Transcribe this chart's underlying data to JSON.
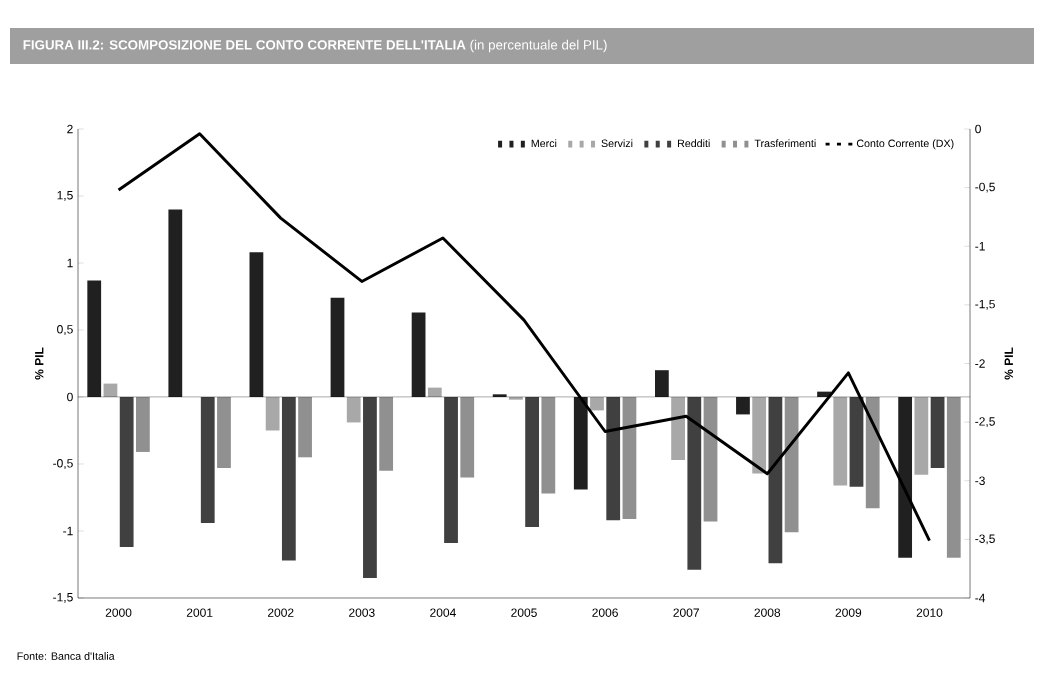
{
  "chart_data": {
    "type": "bar",
    "title": "FIGURA III.2: SCOMPOSIZIONE DEL CONTO CORRENTE DELL'ITALIA",
    "subtitle": "(in percentuale del PIL)",
    "ylabel": "% PIL",
    "y2label": "% PIL",
    "categories": [
      "2000",
      "2001",
      "2002",
      "2003",
      "2004",
      "2005",
      "2006",
      "2007",
      "2008",
      "2009",
      "2010"
    ],
    "series": [
      {
        "name": "Merci",
        "color": "#202020",
        "values": [
          0.87,
          1.4,
          1.08,
          0.74,
          0.63,
          0.02,
          -0.69,
          0.2,
          -0.13,
          0.04,
          -1.2
        ]
      },
      {
        "name": "Servizi",
        "color": "#a8a8a8",
        "values": [
          0.1,
          0.0,
          -0.25,
          -0.19,
          0.07,
          -0.02,
          -0.1,
          -0.47,
          -0.57,
          -0.66,
          -0.58
        ]
      },
      {
        "name": "Redditi",
        "color": "#404040",
        "values": [
          -1.12,
          -0.94,
          -1.22,
          -1.35,
          -1.09,
          -0.97,
          -0.92,
          -1.29,
          -1.24,
          -0.67,
          -0.53
        ]
      },
      {
        "name": "Trasferimenti",
        "color": "#909090",
        "values": [
          -0.41,
          -0.53,
          -0.45,
          -0.55,
          -0.6,
          -0.72,
          -0.91,
          -0.93,
          -1.01,
          -0.83,
          -1.2
        ]
      },
      {
        "name": "Conto Corrente (DX)",
        "type": "line",
        "axis": "y2",
        "color": "#000000",
        "values": [
          -0.52,
          -0.04,
          -0.76,
          -1.3,
          -0.93,
          -1.63,
          -2.58,
          -2.45,
          -2.94,
          -2.08,
          -3.51
        ]
      }
    ],
    "ylim": [
      -1.5,
      2
    ],
    "yticks": [
      {
        "value": -1.5,
        "label": "-1,5"
      },
      -1,
      {
        "value": -0.5,
        "label": "-0,5"
      },
      0,
      {
        "value": 0.5,
        "label": "0,5"
      },
      1,
      {
        "value": 1.5,
        "label": "1,5"
      },
      2
    ],
    "y2lim": [
      -4,
      0
    ],
    "y2ticks": [
      -4,
      {
        "value": -3.5,
        "label": "-3,5"
      },
      -3,
      {
        "value": -2.5,
        "label": "-2,5"
      },
      -2,
      {
        "value": -1.5,
        "label": "-1,5"
      },
      -1,
      {
        "value": -0.5,
        "label": "-0,5"
      },
      0
    ],
    "ref_lines": [
      {
        "axis": "y",
        "value": 0,
        "color": "#000000"
      }
    ],
    "grid": false,
    "legend": "top right",
    "annotations": [
      "Fonte: Banca d'Italia"
    ]
  }
}
